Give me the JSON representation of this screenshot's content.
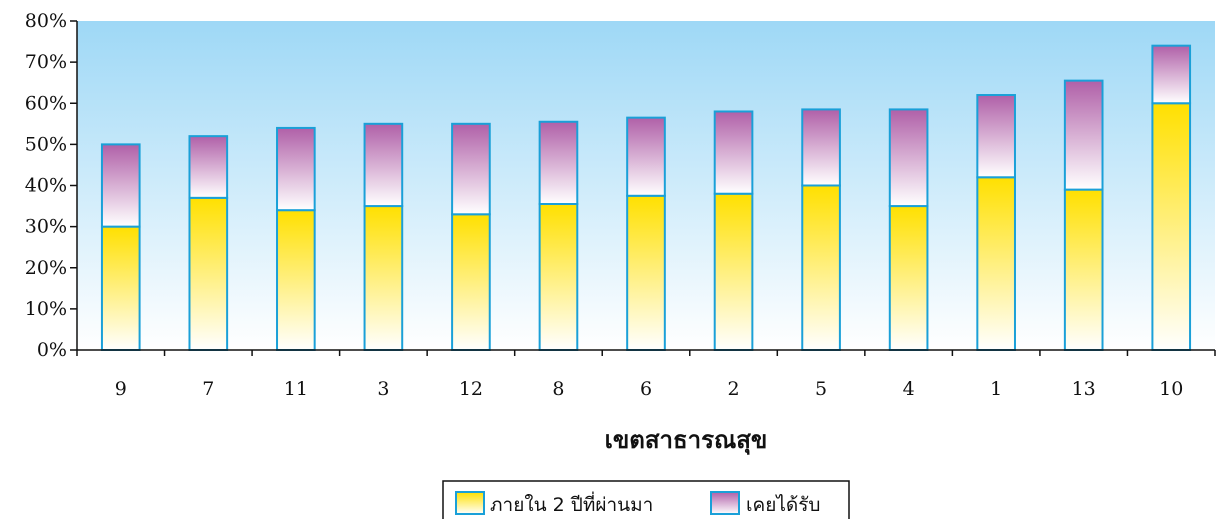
{
  "chart_data": {
    "type": "bar",
    "stacked": true,
    "categories": [
      "9",
      "7",
      "11",
      "3",
      "12",
      "8",
      "6",
      "2",
      "5",
      "4",
      "1",
      "13",
      "10"
    ],
    "series": [
      {
        "name": "ภายใน 2 ปีที่ผ่านมา",
        "values": [
          30,
          37,
          34,
          35,
          33,
          35.5,
          37.5,
          38,
          40,
          35,
          42,
          39,
          60
        ],
        "color": "#ffe000"
      },
      {
        "name": "เคยได้รับ",
        "values": [
          20,
          15,
          20,
          20,
          22,
          20,
          19,
          20,
          18.5,
          23.5,
          20,
          26.5,
          14
        ],
        "color": "#b060a8"
      }
    ],
    "totals": [
      50,
      52,
      54,
      55,
      55.5,
      55.5,
      56.5,
      58,
      58.5,
      58.5,
      62,
      65.5,
      74
    ],
    "xlabel": "เขตสาธารณสุข",
    "ylabel": "",
    "ylim": [
      0,
      80
    ],
    "yticks": [
      "0%",
      "10%",
      "20%",
      "30%",
      "40%",
      "50%",
      "60%",
      "70%",
      "80%"
    ],
    "legend_position": "bottom-center",
    "bar_outline_color": "#1aa0d8",
    "plot_background_top": "#9ed8f6",
    "plot_background_bottom": "#ffffff"
  }
}
